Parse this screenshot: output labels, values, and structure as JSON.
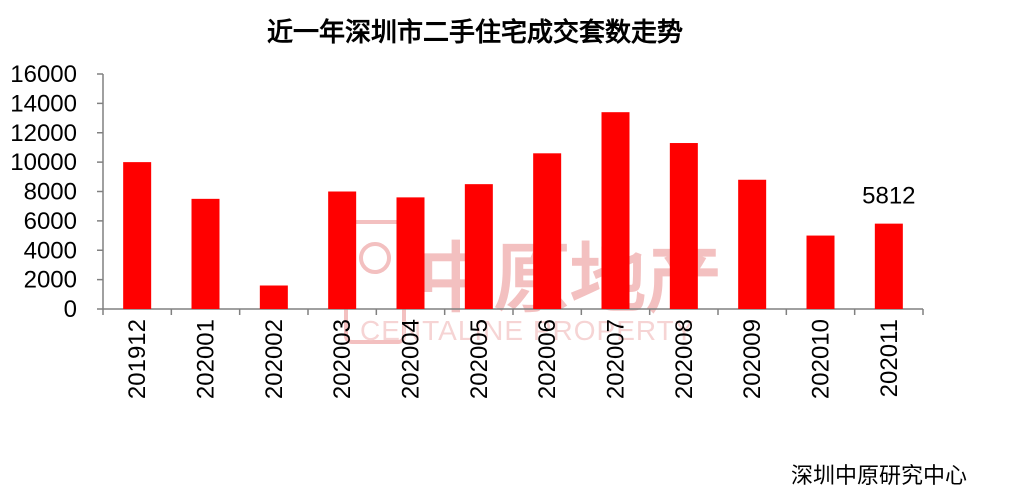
{
  "chart_data": {
    "type": "bar",
    "title": "近一年深圳市二手住宅成交套数走势",
    "categories": [
      "201912",
      "202001",
      "202002",
      "202003",
      "202004",
      "202005",
      "202006",
      "202007",
      "202008",
      "202009",
      "202010",
      "202011"
    ],
    "series": [
      {
        "values": [
          10000,
          7500,
          1600,
          8000,
          7600,
          8500,
          10600,
          13400,
          11300,
          8800,
          5000,
          5812
        ],
        "color": "#ff0000"
      }
    ],
    "ylim": [
      0,
      16000
    ],
    "yticks": [
      0,
      2000,
      4000,
      6000,
      8000,
      10000,
      12000,
      14000,
      16000
    ],
    "data_labels": [
      {
        "category": "202011",
        "text": "5812"
      }
    ],
    "grid": false,
    "legend": "none"
  },
  "watermark": {
    "text": "中原地产",
    "sub": "CENTALINE PROPERTY"
  },
  "source": "深圳中原研究中心"
}
